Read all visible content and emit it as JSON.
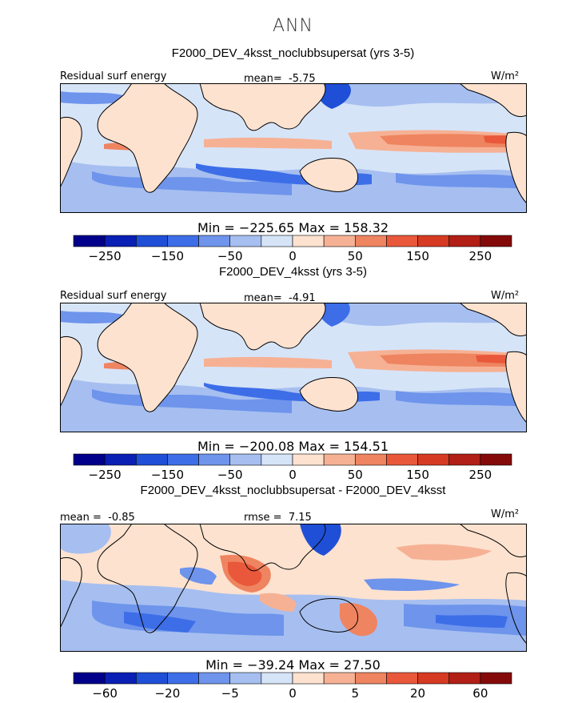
{
  "figure": {
    "title": "ANN"
  },
  "colors": {
    "palette": [
      "#00008b",
      "#0a1fb4",
      "#1f4fd6",
      "#3d6ee8",
      "#6e94ec",
      "#a6bff0",
      "#d6e4f8",
      "#fde2cf",
      "#f6b194",
      "#ef8460",
      "#e9583a",
      "#d63a22",
      "#b11f16",
      "#840a0a"
    ],
    "land": "#fde2cf",
    "frame": "#000000"
  },
  "chart_data": [
    {
      "type": "heatmap",
      "panel": "top",
      "title": "F2000_DEV_4ksst_noclubbsupersat (yrs 3-5)",
      "variable": "Residual surf energy",
      "units": "W/m²",
      "mean_label": "mean=",
      "mean_value": "-5.75",
      "stats_text": "Min = −225.65 Max = 158.32",
      "min": -225.65,
      "max": 158.32,
      "levels": [
        -300,
        -250,
        -200,
        -150,
        -100,
        -50,
        -25,
        0,
        25,
        50,
        100,
        150,
        200,
        250,
        300
      ],
      "colorbar_ticks": [
        "−250",
        "−150",
        "−50",
        "0",
        "50",
        "150",
        "250"
      ],
      "colorbar_tick_values": [
        -250,
        -150,
        -50,
        0,
        50,
        150,
        250
      ]
    },
    {
      "type": "heatmap",
      "panel": "middle",
      "title": "F2000_DEV_4ksst (yrs 3-5)",
      "variable": "Residual surf energy",
      "units": "W/m²",
      "mean_label": "mean=",
      "mean_value": "-4.91",
      "stats_text": "Min = −200.08 Max = 154.51",
      "min": -200.08,
      "max": 154.51,
      "levels": [
        -300,
        -250,
        -200,
        -150,
        -100,
        -50,
        -25,
        0,
        25,
        50,
        100,
        150,
        200,
        250,
        300
      ],
      "colorbar_ticks": [
        "−250",
        "−150",
        "−50",
        "0",
        "50",
        "150",
        "250"
      ],
      "colorbar_tick_values": [
        -250,
        -150,
        -50,
        0,
        50,
        150,
        250
      ]
    },
    {
      "type": "heatmap",
      "panel": "bottom",
      "title": "F2000_DEV_4ksst_noclubbsupersat - F2000_DEV_4ksst",
      "variable": "",
      "units": "W/m²",
      "mean_label": "mean =",
      "mean_value": "-0.85",
      "rmse_label": "rmse =",
      "rmse_value": "7.15",
      "stats_text": "Min = −39.24 Max =  27.50",
      "min": -39.24,
      "max": 27.5,
      "levels": [
        -80,
        -60,
        -40,
        -20,
        -10,
        -5,
        -2,
        0,
        2,
        5,
        10,
        20,
        40,
        60,
        80
      ],
      "colorbar_ticks": [
        "−60",
        "−20",
        "−5",
        "0",
        "5",
        "20",
        "60"
      ],
      "colorbar_tick_values": [
        -60,
        -20,
        -5,
        0,
        5,
        20,
        60
      ]
    }
  ]
}
